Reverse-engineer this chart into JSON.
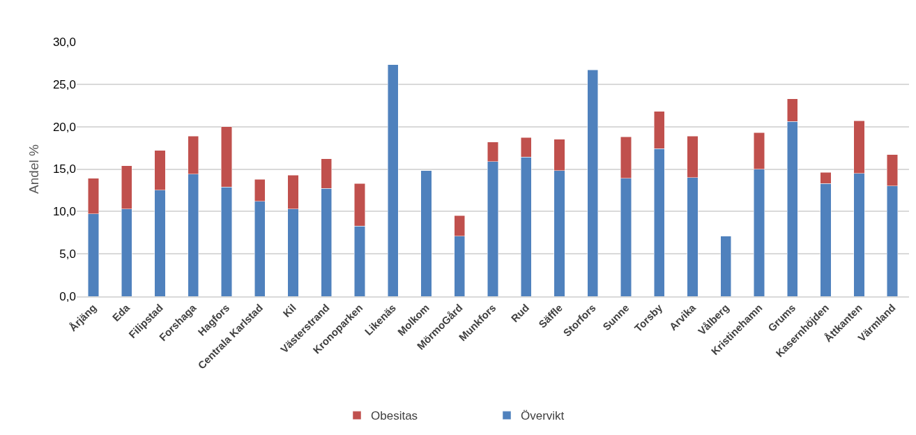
{
  "chart_data": {
    "type": "bar",
    "stacked": true,
    "ylabel": "Andel %",
    "categories": [
      "Årjäng",
      "Eda",
      "Filipstad",
      "Forshaga",
      "Hagfors",
      "Centrala Karlstad",
      "Kil",
      "Västerstrand",
      "Kronoparken",
      "Likenäs",
      "Molkom",
      "MörmoGård",
      "Munkfors",
      "Rud",
      "Säffle",
      "Storfors",
      "Sunne",
      "Torsby",
      "Arvika",
      "Vålberg",
      "Kristinehamn",
      "Grums",
      "Kasernhöjden",
      "Åttkanten",
      "Värmland"
    ],
    "series": [
      {
        "name": "Övervikt",
        "color": "#4f81bd",
        "values": [
          9.7,
          10.3,
          12.5,
          14.4,
          12.9,
          11.2,
          10.3,
          12.7,
          8.3,
          27.3,
          14.8,
          7.1,
          15.9,
          16.4,
          14.8,
          26.7,
          13.9,
          17.4,
          14.0,
          7.1,
          15.0,
          20.6,
          13.3,
          14.5,
          13.0
        ]
      },
      {
        "name": "Obesitas",
        "color": "#c0504d",
        "values": [
          4.2,
          5.1,
          4.7,
          4.5,
          7.1,
          2.6,
          4.0,
          3.5,
          5.0,
          null,
          null,
          2.4,
          2.3,
          2.3,
          3.7,
          null,
          4.9,
          4.4,
          4.9,
          null,
          4.3,
          2.7,
          1.3,
          6.2,
          3.7
        ]
      }
    ],
    "ylim": [
      0,
      30
    ],
    "yticks": [
      {
        "value": 0,
        "label": "0,0"
      },
      {
        "value": 5,
        "label": "5,0"
      },
      {
        "value": 10,
        "label": "10,0"
      },
      {
        "value": 15,
        "label": "15,0"
      },
      {
        "value": 20,
        "label": "20,0"
      },
      {
        "value": 25,
        "label": "25,0"
      },
      {
        "value": 30,
        "label": "30,0"
      }
    ],
    "grid": "y",
    "legend": "bottom"
  }
}
